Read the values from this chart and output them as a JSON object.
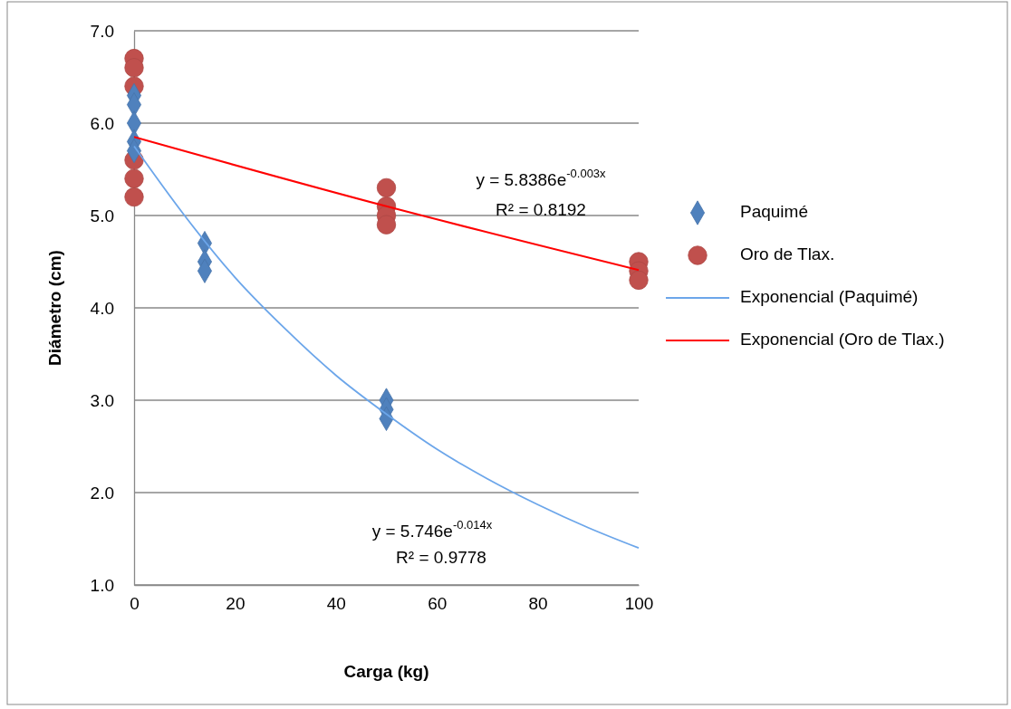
{
  "chart_data": {
    "type": "scatter",
    "xlabel": "Carga (kg)",
    "ylabel": "Diámetro (cm)",
    "xlim": [
      0,
      100
    ],
    "xticks": [
      0,
      20,
      40,
      60,
      80,
      100
    ],
    "ylim": [
      1,
      7
    ],
    "yticks": [
      {
        "value": 1,
        "label": "1.0"
      },
      {
        "value": 2,
        "label": "2.0"
      },
      {
        "value": 3,
        "label": "3.0"
      },
      {
        "value": 4,
        "label": "4.0"
      },
      {
        "value": 5,
        "label": "5.0"
      },
      {
        "value": 6,
        "label": "6.0"
      },
      {
        "value": 7,
        "label": "7.0"
      }
    ],
    "grid": "y",
    "legend": "right",
    "series": [
      {
        "name": "Paquimé",
        "marker": "diamond",
        "color": "#4f81bd",
        "x": [
          0,
          0,
          0,
          0,
          0,
          14,
          14,
          14,
          50,
          50,
          50
        ],
        "values": [
          6.3,
          6.2,
          6.0,
          5.8,
          5.7,
          4.7,
          4.5,
          4.4,
          3.0,
          2.9,
          2.8
        ]
      },
      {
        "name": "Oro de Tlax.",
        "marker": "circle",
        "color": "#c0504d",
        "x": [
          0,
          0,
          0,
          0,
          0,
          0,
          50,
          50,
          50,
          50,
          100,
          100,
          100
        ],
        "values": [
          6.7,
          6.6,
          6.4,
          5.6,
          5.4,
          5.2,
          5.3,
          5.1,
          5.0,
          4.9,
          4.5,
          4.4,
          4.3
        ]
      },
      {
        "name": "Exponencial (Paquimé)",
        "type": "line",
        "marker": "none",
        "color": "#6ca6ea",
        "x": [
          0,
          10,
          20,
          30,
          40,
          50,
          60,
          70,
          80,
          90,
          100
        ],
        "values": [
          5.75,
          5.0,
          4.33,
          3.77,
          3.27,
          2.85,
          2.47,
          2.15,
          1.87,
          1.62,
          1.4
        ]
      },
      {
        "name": "Exponencial (Oro de Tlax.)",
        "type": "line",
        "marker": "none",
        "color": "#ff0000",
        "x": [
          0,
          50,
          100
        ],
        "values": [
          5.85,
          5.1,
          4.41
        ]
      }
    ],
    "annotations": [
      "y = 5.8386e$^{-0.003x}$",
      "R² = 0.8192",
      "y = 5.746e$^{-0.014x}$",
      "R² = 0.9778"
    ]
  }
}
